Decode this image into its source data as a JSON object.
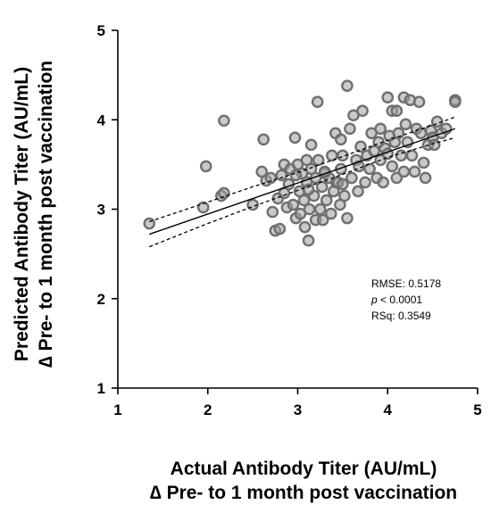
{
  "chart_data": {
    "type": "scatter",
    "xlabel_line1": "Actual Antibody Titer (AU/mL)",
    "xlabel_line2": "∆ Pre- to 1 month post vaccination",
    "ylabel_line1": "Predicted Antibody Titer (AU/mL)",
    "ylabel_line2": "∆ Pre- to 1 month post vaccination",
    "xlim": [
      1,
      5
    ],
    "ylim": [
      1,
      5
    ],
    "xticks": [
      "1",
      "2",
      "3",
      "4",
      "5"
    ],
    "yticks": [
      "1",
      "2",
      "3",
      "4",
      "5"
    ],
    "grid": false,
    "stats": {
      "rmse": "RMSE: 0.5178",
      "p_symbol": "p",
      "p_value": " < 0.0001",
      "rsq": "RSq: 0.3549"
    },
    "fit_line": {
      "x": [
        1.35,
        4.75
      ],
      "y": [
        2.72,
        3.9
      ]
    },
    "ci_upper": {
      "x": [
        1.35,
        2.0,
        2.5,
        3.0,
        3.5,
        4.0,
        4.5,
        4.75
      ],
      "y": [
        2.86,
        3.08,
        3.25,
        3.41,
        3.59,
        3.77,
        3.94,
        4.03
      ]
    },
    "ci_lower": {
      "x": [
        1.35,
        2.0,
        2.5,
        3.0,
        3.5,
        4.0,
        4.5,
        4.75
      ],
      "y": [
        2.58,
        2.84,
        3.03,
        3.21,
        3.39,
        3.58,
        3.73,
        3.8
      ]
    },
    "points": [
      [
        1.35,
        2.84
      ],
      [
        1.95,
        3.02
      ],
      [
        1.98,
        3.48
      ],
      [
        2.15,
        3.15
      ],
      [
        2.18,
        3.18
      ],
      [
        2.18,
        3.99
      ],
      [
        2.5,
        3.05
      ],
      [
        2.6,
        3.42
      ],
      [
        2.62,
        3.78
      ],
      [
        2.65,
        3.32
      ],
      [
        2.7,
        3.35
      ],
      [
        2.72,
        2.97
      ],
      [
        2.75,
        2.76
      ],
      [
        2.78,
        3.12
      ],
      [
        2.8,
        2.78
      ],
      [
        2.82,
        3.38
      ],
      [
        2.85,
        3.5
      ],
      [
        2.88,
        3.02
      ],
      [
        2.9,
        3.28
      ],
      [
        2.92,
        3.45
      ],
      [
        2.95,
        3.05
      ],
      [
        2.97,
        3.8
      ],
      [
        2.98,
        2.9
      ],
      [
        3.0,
        3.5
      ],
      [
        3.02,
        3.2
      ],
      [
        3.03,
        2.95
      ],
      [
        3.05,
        3.4
      ],
      [
        3.07,
        3.1
      ],
      [
        3.08,
        2.8
      ],
      [
        3.1,
        3.55
      ],
      [
        3.1,
        3.3
      ],
      [
        3.12,
        2.65
      ],
      [
        3.13,
        3.0
      ],
      [
        3.15,
        3.72
      ],
      [
        3.15,
        3.45
      ],
      [
        3.18,
        3.15
      ],
      [
        3.2,
        2.88
      ],
      [
        3.2,
        3.35
      ],
      [
        3.22,
        4.2
      ],
      [
        3.23,
        3.55
      ],
      [
        3.25,
        3.0
      ],
      [
        3.27,
        3.25
      ],
      [
        3.28,
        2.88
      ],
      [
        3.3,
        3.4
      ],
      [
        3.32,
        3.1
      ],
      [
        3.35,
        3.35
      ],
      [
        3.37,
        2.95
      ],
      [
        3.38,
        3.6
      ],
      [
        3.4,
        3.2
      ],
      [
        3.42,
        3.85
      ],
      [
        3.43,
        3.3
      ],
      [
        3.45,
        3.3
      ],
      [
        3.47,
        3.05
      ],
      [
        3.48,
        3.45
      ],
      [
        3.5,
        3.28
      ],
      [
        3.5,
        3.6
      ],
      [
        3.52,
        3.15
      ],
      [
        3.55,
        4.38
      ],
      [
        3.55,
        2.9
      ],
      [
        3.58,
        3.9
      ],
      [
        3.6,
        3.35
      ],
      [
        3.62,
        4.05
      ],
      [
        3.65,
        3.55
      ],
      [
        3.67,
        3.2
      ],
      [
        3.7,
        3.7
      ],
      [
        3.72,
        4.1
      ],
      [
        3.75,
        3.3
      ],
      [
        3.77,
        3.6
      ],
      [
        3.8,
        3.45
      ],
      [
        3.82,
        3.85
      ],
      [
        3.85,
        3.65
      ],
      [
        3.88,
        3.35
      ],
      [
        3.9,
        3.75
      ],
      [
        3.92,
        3.9
      ],
      [
        3.95,
        3.3
      ],
      [
        3.97,
        3.68
      ],
      [
        4.0,
        3.62
      ],
      [
        4.0,
        4.25
      ],
      [
        4.02,
        3.82
      ],
      [
        4.05,
        3.48
      ],
      [
        4.05,
        4.1
      ],
      [
        4.08,
        3.75
      ],
      [
        4.1,
        3.35
      ],
      [
        4.1,
        4.1
      ],
      [
        4.12,
        3.85
      ],
      [
        4.15,
        3.6
      ],
      [
        4.18,
        4.25
      ],
      [
        4.2,
        3.95
      ],
      [
        4.22,
        3.75
      ],
      [
        4.25,
        4.22
      ],
      [
        4.27,
        3.6
      ],
      [
        4.3,
        3.42
      ],
      [
        4.32,
        3.9
      ],
      [
        4.35,
        4.2
      ],
      [
        4.37,
        3.85
      ],
      [
        4.4,
        3.52
      ],
      [
        4.42,
        3.35
      ],
      [
        4.45,
        3.72
      ],
      [
        4.48,
        3.88
      ],
      [
        4.5,
        3.8
      ],
      [
        4.52,
        3.72
      ],
      [
        4.55,
        3.98
      ],
      [
        4.6,
        3.85
      ],
      [
        4.65,
        3.9
      ],
      [
        4.75,
        4.22
      ],
      [
        4.75,
        4.2
      ],
      [
        3.3,
        3.42
      ],
      [
        3.48,
        3.78
      ],
      [
        3.68,
        3.48
      ],
      [
        3.92,
        3.55
      ],
      [
        4.18,
        3.42
      ],
      [
        3.12,
        3.22
      ],
      [
        2.98,
        3.38
      ],
      [
        2.85,
        3.18
      ]
    ]
  }
}
